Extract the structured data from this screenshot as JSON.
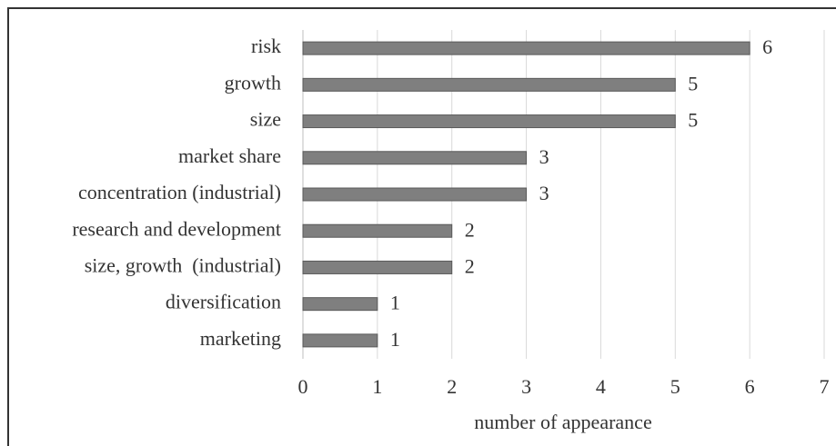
{
  "chart_data": {
    "type": "bar",
    "orientation": "horizontal",
    "x_label": "number of appearance",
    "categories": [
      "risk",
      "growth",
      "size",
      "market share",
      "concentration (industrial)",
      "research and development",
      "size, growth  (industrial)",
      "diversification",
      "marketing"
    ],
    "values": [
      6,
      5,
      5,
      3,
      3,
      2,
      2,
      1,
      1
    ],
    "color": "#7f7f7f",
    "xlim": [
      0,
      7
    ],
    "xticks": [
      0,
      1,
      2,
      3,
      4,
      5,
      6,
      7
    ],
    "grid": true
  }
}
